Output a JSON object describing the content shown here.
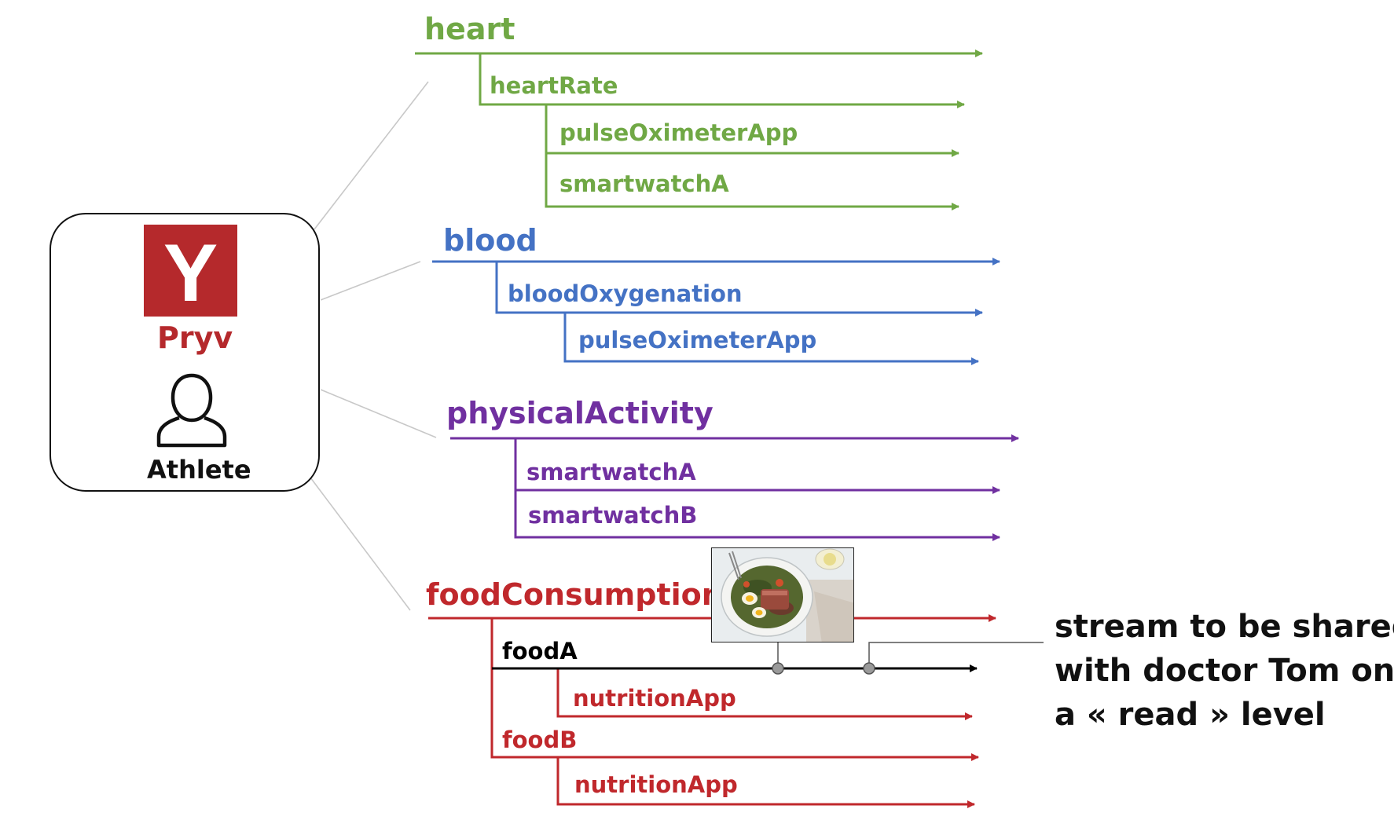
{
  "colors": {
    "heart": "#70a845",
    "blood": "#4472c4",
    "physicalActivity": "#7030a0",
    "foodConsumption": "#c0282c",
    "foodA": "#000000",
    "connector": "#c8c8c8",
    "marker": "#888888",
    "brand": "#b5292c"
  },
  "profile": {
    "brand_name": "Pryv",
    "logo_letter": "Y",
    "user_label": "Athlete",
    "user_icon": "person-outline-icon",
    "logo_icon": "pryv-logo-icon"
  },
  "streams": {
    "heart": {
      "label": "heart",
      "children": {
        "heartRate": {
          "label": "heartRate",
          "children": [
            "pulseOximeterApp",
            "smartwatchA"
          ]
        }
      }
    },
    "blood": {
      "label": "blood",
      "children": {
        "bloodOxygenation": {
          "label": "bloodOxygenation",
          "children": [
            "pulseOximeterApp"
          ]
        }
      }
    },
    "physicalActivity": {
      "label": "physicalActivity",
      "children": [
        "smartwatchA",
        "smartwatchB"
      ]
    },
    "foodConsumption": {
      "label": "foodConsumption",
      "foodA": {
        "label": "foodA",
        "children": [
          "nutritionApp"
        ]
      },
      "foodB": {
        "label": "foodB",
        "children": [
          "nutritionApp"
        ]
      },
      "image": "food-salad-photo"
    }
  },
  "annotation": {
    "lines": [
      "stream to be shared",
      "with doctor Tom on",
      "a « read » level"
    ]
  }
}
